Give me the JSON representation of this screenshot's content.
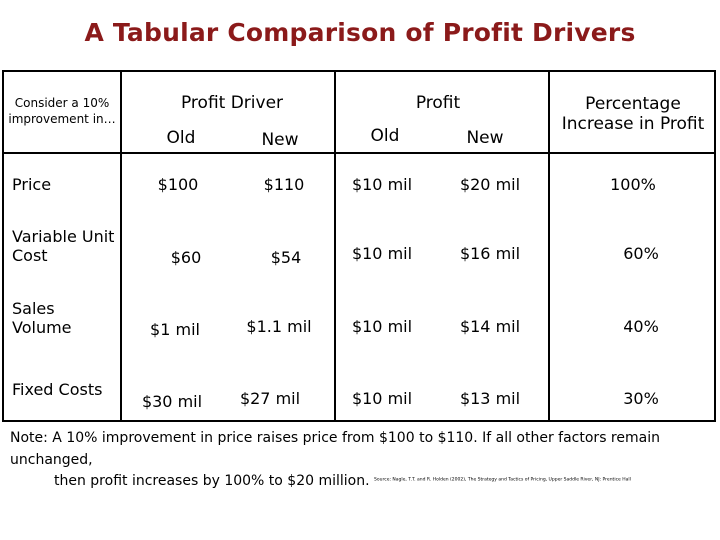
{
  "title": "A Tabular Comparison of Profit Drivers",
  "headers": {
    "consider": "Consider a 10% improvement in…",
    "profit_driver": "Profit Driver",
    "profit": "Profit",
    "pct_increase": "Percentage Increase in Profit",
    "old": "Old",
    "new": "New"
  },
  "rows": [
    {
      "label": "Price",
      "driver_old": "$100",
      "driver_new": "$110",
      "profit_old": "$10 mil",
      "profit_new": "$20 mil",
      "pct": "100%"
    },
    {
      "label": "Variable Unit Cost",
      "driver_old": "$60",
      "driver_new": "$54",
      "profit_old": "$10 mil",
      "profit_new": "$16 mil",
      "pct": "60%"
    },
    {
      "label": "Sales Volume",
      "driver_old": "$1 mil",
      "driver_new": "$1.1 mil",
      "profit_old": "$10 mil",
      "profit_new": "$14 mil",
      "pct": "40%"
    },
    {
      "label": "Fixed Costs",
      "driver_old": "$30 mil",
      "driver_new": "$27 mil",
      "profit_old": "$10 mil",
      "profit_new": "$13 mil",
      "pct": "30%"
    }
  ],
  "note": {
    "line1": "Note: A 10% improvement in price raises price from $100 to $110. If all other factors remain unchanged,",
    "line2": "then profit increases by 100% to $20 million.",
    "source": "Source: Nagle, T.T. and R. Holden (2002), The Strategy and Tactics of Pricing, Upper Saddle River, NJ: Prentice Hall"
  },
  "colors": {
    "title": "#8b1a1a",
    "rule": "#000000"
  }
}
